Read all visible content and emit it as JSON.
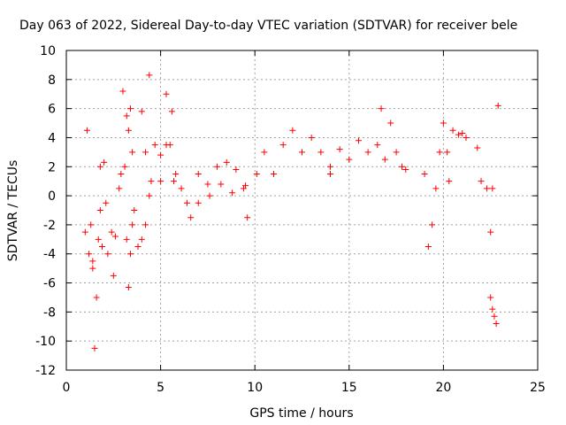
{
  "chart_data": {
    "type": "scatter",
    "title": "Day 063 of 2022, Sidereal Day-to-day VTEC variation (SDTVAR) for receiver bele",
    "xlabel": "GPS time / hours",
    "ylabel": "SDTVAR / TECUs",
    "xlim": [
      0,
      25
    ],
    "ylim": [
      -12,
      10
    ],
    "xticks": [
      0,
      5,
      10,
      15,
      20,
      25
    ],
    "yticks": [
      -12,
      -10,
      -8,
      -6,
      -4,
      -2,
      0,
      2,
      4,
      6,
      8,
      10
    ],
    "grid": true,
    "marker": "plus",
    "color": "#ff0000",
    "series": [
      {
        "name": "seg-1",
        "x": [
          1.0,
          1.1,
          1.2,
          1.3,
          1.4
        ],
        "y": [
          -2.5,
          4.5,
          -4.0,
          -2.0,
          -4.5
        ]
      },
      {
        "name": "seg-2",
        "x": [
          1.4,
          1.5,
          1.6,
          1.7,
          1.8
        ],
        "y": [
          -5.0,
          -10.5,
          -7.0,
          -3.0,
          2.0
        ]
      },
      {
        "name": "seg-3",
        "x": [
          1.8,
          1.9,
          2.0,
          2.1
        ],
        "y": [
          -1.0,
          -3.5,
          2.3,
          -0.5
        ]
      },
      {
        "name": "seg-4",
        "x": [
          2.2,
          2.4,
          2.5,
          2.6,
          2.8
        ],
        "y": [
          -4.0,
          -2.5,
          -5.5,
          -2.8,
          0.5
        ]
      },
      {
        "name": "seg-5",
        "x": [
          2.9,
          3.0,
          3.1,
          3.2,
          3.3,
          3.4
        ],
        "y": [
          1.5,
          7.2,
          2.0,
          5.5,
          4.5,
          6.0
        ]
      },
      {
        "name": "seg-6",
        "x": [
          3.2,
          3.3,
          3.4,
          3.5,
          3.6
        ],
        "y": [
          -3.0,
          -6.3,
          -4.0,
          -2.0,
          -1.0
        ]
      },
      {
        "name": "seg-7",
        "x": [
          3.5,
          3.8,
          4.0,
          4.2,
          4.4
        ],
        "y": [
          3.0,
          -3.5,
          -3.0,
          -2.0,
          0.0
        ]
      },
      {
        "name": "seg-8",
        "x": [
          4.0,
          4.2,
          4.4,
          4.5,
          4.7,
          5.0,
          5.3,
          5.5,
          5.7
        ],
        "y": [
          5.8,
          3.0,
          8.3,
          1.0,
          3.5,
          1.0,
          7.0,
          3.5,
          1.0
        ]
      },
      {
        "name": "seg-9",
        "x": [
          5.0,
          5.3,
          5.6,
          5.8,
          6.1,
          6.4,
          6.6
        ],
        "y": [
          2.8,
          3.5,
          5.8,
          1.5,
          0.5,
          -0.5,
          -1.5
        ]
      },
      {
        "name": "seg-10",
        "x": [
          7.0,
          7.5,
          8.0,
          8.5,
          9.0,
          9.5
        ],
        "y": [
          1.5,
          0.8,
          2.0,
          2.3,
          1.8,
          0.7
        ]
      },
      {
        "name": "seg-11",
        "x": [
          7.0,
          7.6,
          8.2,
          8.8,
          9.4,
          9.6,
          10.1
        ],
        "y": [
          -0.5,
          0.0,
          0.8,
          0.2,
          0.5,
          -1.5,
          1.5
        ]
      },
      {
        "name": "seg-12",
        "x": [
          10.5,
          11.0,
          11.5,
          12.0,
          12.5,
          13.0,
          13.5,
          14.0
        ],
        "y": [
          3.0,
          1.5,
          3.5,
          4.5,
          3.0,
          4.0,
          3.0,
          2.0
        ]
      },
      {
        "name": "seg-13",
        "x": [
          14.0,
          14.5,
          15.0,
          15.5,
          16.0
        ],
        "y": [
          1.5,
          3.2,
          2.5,
          3.8,
          3.0
        ]
      },
      {
        "name": "seg-14",
        "x": [
          16.5,
          16.7,
          16.9,
          17.2,
          17.5,
          17.8,
          18.0
        ],
        "y": [
          3.5,
          6.0,
          2.5,
          5.0,
          3.0,
          2.0,
          1.8
        ]
      },
      {
        "name": "seg-15",
        "x": [
          19.0,
          19.2,
          19.4,
          19.6,
          19.8,
          20.0,
          20.3
        ],
        "y": [
          1.5,
          -3.5,
          -2.0,
          0.5,
          3.0,
          5.0,
          1.0
        ]
      },
      {
        "name": "seg-16",
        "x": [
          20.2,
          20.5,
          20.8,
          21.0,
          21.2
        ],
        "y": [
          3.0,
          4.5,
          4.2,
          4.3,
          4.0
        ]
      },
      {
        "name": "seg-17",
        "x": [
          21.8,
          22.0,
          22.3,
          22.5,
          22.6
        ],
        "y": [
          3.3,
          1.0,
          0.5,
          -2.5,
          0.5
        ]
      },
      {
        "name": "seg-18",
        "x": [
          22.5,
          22.6,
          22.7,
          22.8,
          22.9
        ],
        "y": [
          -7.0,
          -7.8,
          -8.3,
          -8.8,
          6.2
        ]
      }
    ]
  }
}
